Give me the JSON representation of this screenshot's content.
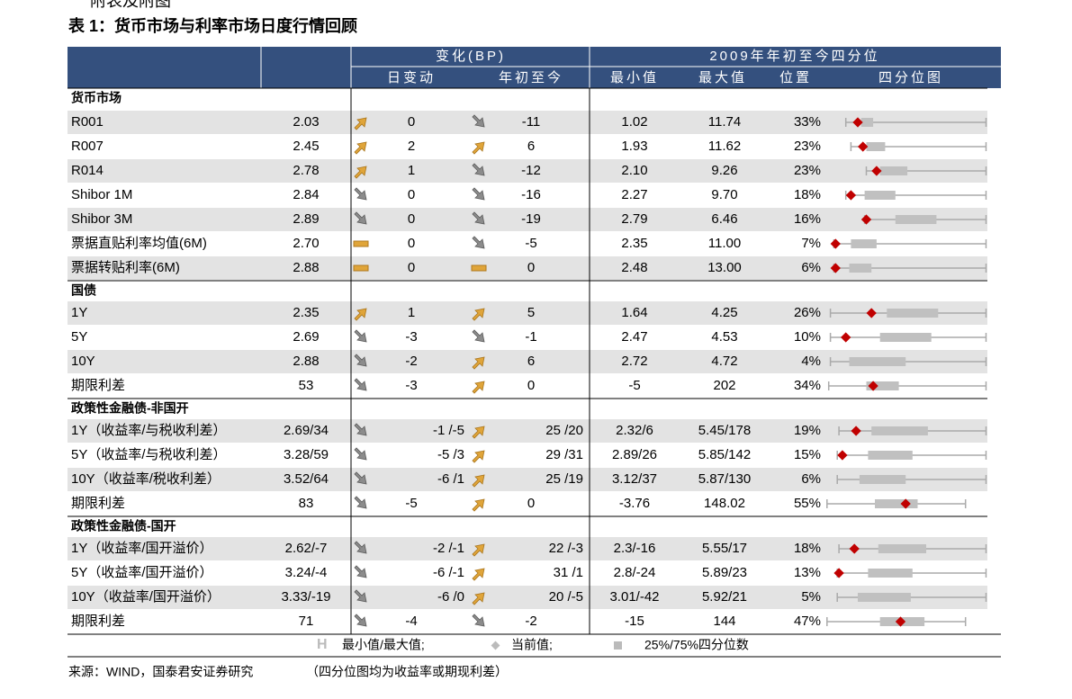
{
  "heading": "附表及附图",
  "title": "表 1：货币市场与利率市场日度行情回顾",
  "header": {
    "group_change": "变化(BP)",
    "group_quartile": "2009年年初至今四分位",
    "columns": [
      "日变动",
      "年初至今",
      "最小值",
      "最大值",
      "位置",
      "四分位图"
    ]
  },
  "sections": [
    {
      "title": "货币市场",
      "rows": [
        {
          "label": "R001",
          "value": "2.03",
          "day_icon": "up",
          "day": "0",
          "ytd_icon": "down",
          "ytd": "-11",
          "min": "1.02",
          "max": "11.74",
          "position": "33%",
          "quartile_plot": {
            "whisker": [
              13,
              95
            ],
            "box": [
              22,
              29
            ],
            "current": 20
          }
        },
        {
          "label": "R007",
          "value": "2.45",
          "day_icon": "up",
          "day": "2",
          "ytd_icon": "up",
          "ytd": "6",
          "min": "1.93",
          "max": "11.62",
          "position": "23%",
          "quartile_plot": {
            "whisker": [
              16,
              95
            ],
            "box": [
              25,
              36
            ],
            "current": 23
          }
        },
        {
          "label": "R014",
          "value": "2.78",
          "day_icon": "up",
          "day": "1",
          "ytd_icon": "down",
          "ytd": "-12",
          "min": "2.10",
          "max": "9.26",
          "position": "23%",
          "quartile_plot": {
            "whisker": [
              25,
              95
            ],
            "box": [
              33,
              49
            ],
            "current": 31
          }
        },
        {
          "label": "Shibor 1M",
          "value": "2.84",
          "day_icon": "down",
          "day": "0",
          "ytd_icon": "down",
          "ytd": "-16",
          "min": "2.27",
          "max": "9.70",
          "position": "18%",
          "quartile_plot": {
            "whisker": [
              13,
              95
            ],
            "box": [
              24,
              42
            ],
            "current": 16
          }
        },
        {
          "label": "Shibor 3M",
          "value": "2.89",
          "day_icon": "down",
          "day": "0",
          "ytd_icon": "down",
          "ytd": "-19",
          "min": "2.79",
          "max": "6.46",
          "position": "16%",
          "quartile_plot": {
            "whisker": [
              24,
              95
            ],
            "box": [
              42,
              66
            ],
            "current": 25
          }
        },
        {
          "label": "票据直贴利率均值(6M)",
          "value": "2.70",
          "day_icon": "flat",
          "day": "0",
          "ytd_icon": "down",
          "ytd": "-5",
          "min": "2.35",
          "max": "11.00",
          "position": "7%",
          "quartile_plot": {
            "whisker": [
              6,
              95
            ],
            "box": [
              16,
              31
            ],
            "current": 7
          }
        },
        {
          "label": "票据转贴利率(6M)",
          "value": "2.88",
          "day_icon": "flat",
          "day": "0",
          "ytd_icon": "flat",
          "ytd": "0",
          "min": "2.48",
          "max": "13.00",
          "position": "6%",
          "quartile_plot": {
            "whisker": [
              6,
              95
            ],
            "box": [
              15,
              28
            ],
            "current": 7
          }
        }
      ]
    },
    {
      "title": "国债",
      "rows": [
        {
          "label": "1Y",
          "value": "2.35",
          "day_icon": "up",
          "day": "1",
          "ytd_icon": "up",
          "ytd": "5",
          "min": "1.64",
          "max": "4.25",
          "position": "26%",
          "quartile_plot": {
            "whisker": [
              4,
              95
            ],
            "box": [
              37,
              67
            ],
            "current": 28
          }
        },
        {
          "label": "5Y",
          "value": "2.69",
          "day_icon": "down",
          "day": "-3",
          "ytd_icon": "down",
          "ytd": "-1",
          "min": "2.47",
          "max": "4.53",
          "position": "10%",
          "quartile_plot": {
            "whisker": [
              4,
              95
            ],
            "box": [
              33,
              63
            ],
            "current": 13
          }
        },
        {
          "label": "10Y",
          "value": "2.88",
          "day_icon": "down",
          "day": "-2",
          "ytd_icon": "up",
          "ytd": "6",
          "min": "2.72",
          "max": "4.72",
          "position": "4%",
          "quartile_plot": {
            "whisker": [
              4,
              95
            ],
            "box": [
              15,
              48
            ],
            "current": null
          }
        },
        {
          "label": "期限利差",
          "value": "53",
          "day_icon": "down",
          "day": "-3",
          "ytd_icon": "up",
          "ytd": "0",
          "min": "-5",
          "max": "202",
          "position": "34%",
          "quartile_plot": {
            "whisker": [
              3,
              95
            ],
            "box": [
              25,
              44
            ],
            "current": 29
          }
        }
      ]
    },
    {
      "title": "政策性金融债-非国开",
      "rows": [
        {
          "label": "1Y（收益率/与税收利差）",
          "value": "2.69/34",
          "day_icon": "down",
          "day": "-1 /-5",
          "ytd_icon": "up",
          "ytd": "25 /20",
          "min": "2.32/6",
          "max": "5.45/178",
          "position": "19%",
          "quartile_plot": {
            "whisker": [
              9,
              95
            ],
            "box": [
              28,
              61
            ],
            "current": 19
          }
        },
        {
          "label": "5Y（收益率/与税收利差）",
          "value": "3.28/59",
          "day_icon": "down",
          "day": "-5 /3",
          "ytd_icon": "up",
          "ytd": "29 /31",
          "min": "2.89/26",
          "max": "5.85/142",
          "position": "15%",
          "quartile_plot": {
            "whisker": [
              8,
              95
            ],
            "box": [
              26,
              52
            ],
            "current": 11
          }
        },
        {
          "label": "10Y（收益率/税收利差）",
          "value": "3.52/64",
          "day_icon": "down",
          "day": "-6 /1",
          "ytd_icon": "up",
          "ytd": "25 /19",
          "min": "3.12/37",
          "max": "5.87/130",
          "position": "6%",
          "quartile_plot": {
            "whisker": [
              8,
              95
            ],
            "box": [
              21,
              48
            ],
            "current": null
          }
        },
        {
          "label": "期限利差",
          "value": "83",
          "day_icon": "down",
          "day": "-5",
          "ytd_icon": "up",
          "ytd": "0",
          "min": "-3.76",
          "max": "148.02",
          "position": "55%",
          "quartile_plot": {
            "whisker": [
              2,
              83
            ],
            "box": [
              30,
              55
            ],
            "current": 48
          }
        }
      ]
    },
    {
      "title": "政策性金融债-国开",
      "rows": [
        {
          "label": "1Y（收益率/国开溢价）",
          "value": "2.62/-7",
          "day_icon": "down",
          "day": "-2 /-1",
          "ytd_icon": "up",
          "ytd": "22 /-3",
          "min": "2.3/-16",
          "max": "5.55/17",
          "position": "18%",
          "quartile_plot": {
            "whisker": [
              9,
              95
            ],
            "box": [
              32,
              60
            ],
            "current": 18
          }
        },
        {
          "label": "5Y（收益率/国开溢价）",
          "value": "3.24/-4",
          "day_icon": "down",
          "day": "-6 /-1",
          "ytd_icon": "up",
          "ytd": "31 /1",
          "min": "2.8/-24",
          "max": "5.89/23",
          "position": "13%",
          "quartile_plot": {
            "whisker": [
              8,
              95
            ],
            "box": [
              26,
              52
            ],
            "current": 9
          }
        },
        {
          "label": "10Y（收益率/国开溢价）",
          "value": "3.33/-19",
          "day_icon": "down",
          "day": "-6 /0",
          "ytd_icon": "up",
          "ytd": "20 /-5",
          "min": "3.01/-42",
          "max": "5.92/21",
          "position": "5%",
          "quartile_plot": {
            "whisker": [
              8,
              95
            ],
            "box": [
              20,
              51
            ],
            "current": null
          }
        },
        {
          "label": "期限利差",
          "value": "71",
          "day_icon": "down",
          "day": "-4",
          "ytd_icon": "down",
          "ytd": "-2",
          "min": "-15",
          "max": "144",
          "position": "47%",
          "quartile_plot": {
            "whisker": [
              2,
              83
            ],
            "box": [
              33,
              59
            ],
            "current": 45
          }
        }
      ]
    }
  ],
  "legend": [
    "最小值/最大值;",
    "当前值;",
    "25%/75%四分位数"
  ],
  "source": "来源：WIND，国泰君安证券研究",
  "note": "（四分位图均为收益率或期现利差）"
}
